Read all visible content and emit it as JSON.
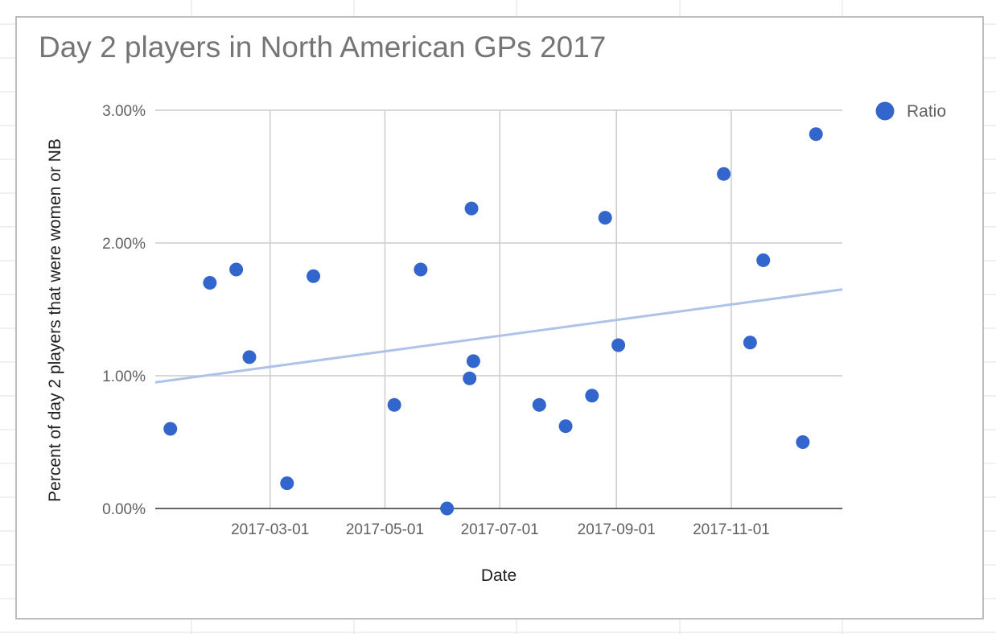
{
  "chart_data": {
    "type": "scatter",
    "title": "Day 2 players in North American GPs 2017",
    "xlabel": "Date",
    "ylabel": "Percent of day 2 players that were women or NB",
    "x_ticks": [
      "2017-03-01",
      "2017-05-01",
      "2017-07-01",
      "2017-09-01",
      "2017-11-01"
    ],
    "y_ticks": [
      "0.00%",
      "1.00%",
      "2.00%",
      "3.00%"
    ],
    "xlim": [
      "2016-12-30",
      "2017-12-30"
    ],
    "ylim": [
      0,
      3
    ],
    "grid": true,
    "legend_position": "right",
    "colors": {
      "points": "#3366cc",
      "trendline": "#aec2ea",
      "gridline": "#cccccc",
      "axis": "#333333"
    },
    "series": [
      {
        "name": "Ratio",
        "points": [
          {
            "x": "2017-01-07",
            "y": 0.6
          },
          {
            "x": "2017-01-28",
            "y": 1.7
          },
          {
            "x": "2017-02-11",
            "y": 1.8
          },
          {
            "x": "2017-02-18",
            "y": 1.14
          },
          {
            "x": "2017-03-10",
            "y": 0.19
          },
          {
            "x": "2017-03-24",
            "y": 1.75
          },
          {
            "x": "2017-05-06",
            "y": 0.78
          },
          {
            "x": "2017-05-20",
            "y": 1.8
          },
          {
            "x": "2017-06-03",
            "y": 0.0
          },
          {
            "x": "2017-06-15",
            "y": 0.98
          },
          {
            "x": "2017-06-16",
            "y": 2.26
          },
          {
            "x": "2017-06-17",
            "y": 1.11
          },
          {
            "x": "2017-07-22",
            "y": 0.78
          },
          {
            "x": "2017-08-05",
            "y": 0.62
          },
          {
            "x": "2017-08-19",
            "y": 0.85
          },
          {
            "x": "2017-08-26",
            "y": 2.19
          },
          {
            "x": "2017-09-02",
            "y": 1.23
          },
          {
            "x": "2017-10-28",
            "y": 2.52
          },
          {
            "x": "2017-11-11",
            "y": 1.25
          },
          {
            "x": "2017-11-18",
            "y": 1.87
          },
          {
            "x": "2017-12-09",
            "y": 0.5
          },
          {
            "x": "2017-12-16",
            "y": 2.82
          }
        ]
      }
    ],
    "trendline": {
      "type": "linear",
      "start": {
        "x": "2016-12-30",
        "y": 0.95
      },
      "end": {
        "x": "2017-12-30",
        "y": 1.65
      }
    }
  }
}
